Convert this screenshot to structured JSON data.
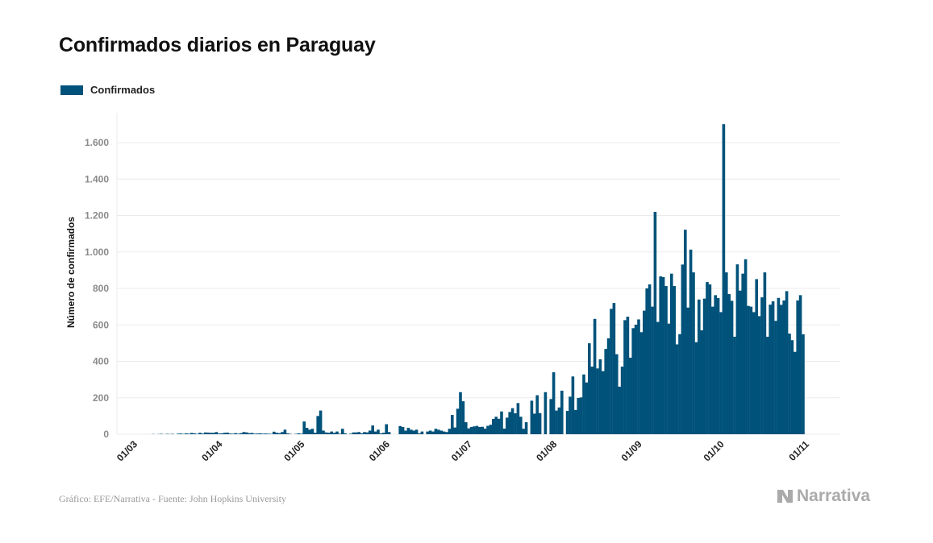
{
  "header": {
    "title": "Confirmados diarios en Paraguay"
  },
  "footer": {
    "source": "Gráfico: EFE/Narrativa - Fuente: John Hopkins University",
    "logo": "Narrativa"
  },
  "colors": {
    "bar": "#00527a",
    "grid": "#ebebeb",
    "logo": "#aaaaaa"
  },
  "chart_data": {
    "type": "bar",
    "title": "Confirmados diarios en Paraguay",
    "xlabel": "",
    "ylabel": "Número de confirmados",
    "ylim": [
      0,
      1700
    ],
    "yticks": [
      0,
      200,
      400,
      600,
      800,
      1000,
      1200,
      1400,
      1600
    ],
    "ytick_labels": [
      "0",
      "200",
      "400",
      "600",
      "800",
      "1.000",
      "1.200",
      "1.400",
      "1.600"
    ],
    "xtick_labels": [
      "01/03",
      "01/04",
      "01/05",
      "01/06",
      "01/07",
      "01/08",
      "01/09",
      "01/10",
      "01/11"
    ],
    "grid": true,
    "legend_placement": "top-left",
    "series": [
      {
        "name": "Confirmados",
        "daily_values_by_month": [
          {
            "month": "03",
            "values": [
              0,
              0,
              0,
              0,
              0,
              0,
              1,
              0,
              1,
              2,
              0,
              2,
              1,
              2,
              0,
              3,
              4,
              2,
              5,
              3,
              7,
              5,
              2,
              8,
              4,
              10,
              9,
              8,
              8,
              12,
              4
            ]
          },
          {
            "month": "04",
            "values": [
              5,
              8,
              9,
              4,
              3,
              6,
              3,
              6,
              12,
              10,
              6,
              7,
              3,
              4,
              5,
              3,
              4,
              3,
              2,
              14,
              8,
              6,
              12,
              25,
              5,
              2,
              0,
              2,
              5,
              3
            ]
          },
          {
            "month": "05",
            "values": [
              70,
              35,
              25,
              30,
              8,
              100,
              130,
              20,
              10,
              8,
              15,
              8,
              15,
              3,
              30,
              5,
              0,
              3,
              10,
              10,
              12,
              5,
              12,
              10,
              20,
              48,
              15,
              25,
              5,
              8,
              55
            ]
          },
          {
            "month": "06",
            "values": [
              12,
              0,
              0,
              0,
              45,
              40,
              20,
              35,
              25,
              20,
              25,
              5,
              15,
              0,
              15,
              20,
              15,
              30,
              25,
              20,
              15,
              12,
              30,
              106,
              37,
              140,
              231,
              181,
              66,
              32
            ]
          },
          {
            "month": "07",
            "values": [
              40,
              43,
              46,
              40,
              41,
              31,
              46,
              52,
              84,
              96,
              85,
              125,
              31,
              91,
              122,
              143,
              115,
              171,
              96,
              30,
              66,
              0,
              184,
              113,
              214,
              116,
              0,
              231,
              0,
              193,
              340
            ]
          },
          {
            "month": "08",
            "values": [
              130,
              147,
              239,
              0,
              128,
              206,
              317,
              133,
              199,
              202,
              328,
              284,
              499,
              371,
              633,
              361,
              411,
              346,
              468,
              526,
              688,
              720,
              439,
              261,
              371,
              626,
              645,
              420,
              582,
              601,
              630
            ]
          },
          {
            "month": "09",
            "values": [
              560,
              678,
              800,
              822,
              700,
              1220,
              616,
              866,
              862,
              813,
              607,
              881,
              813,
              493,
              549,
              931,
              1122,
              695,
              1013,
              888,
              505,
              739,
              570,
              744,
              835,
              822,
              700,
              763,
              747,
              670
            ]
          },
          {
            "month": "10",
            "values": [
              1701,
              888,
              769,
              732,
              535,
              932,
              788,
              881,
              960,
              704,
              700,
              670,
              851,
              648,
              751,
              888,
              535,
              711,
              729,
              622,
              748,
              710,
              734,
              785,
              552,
              516,
              452,
              734,
              763,
              548
            ]
          }
        ]
      }
    ]
  }
}
